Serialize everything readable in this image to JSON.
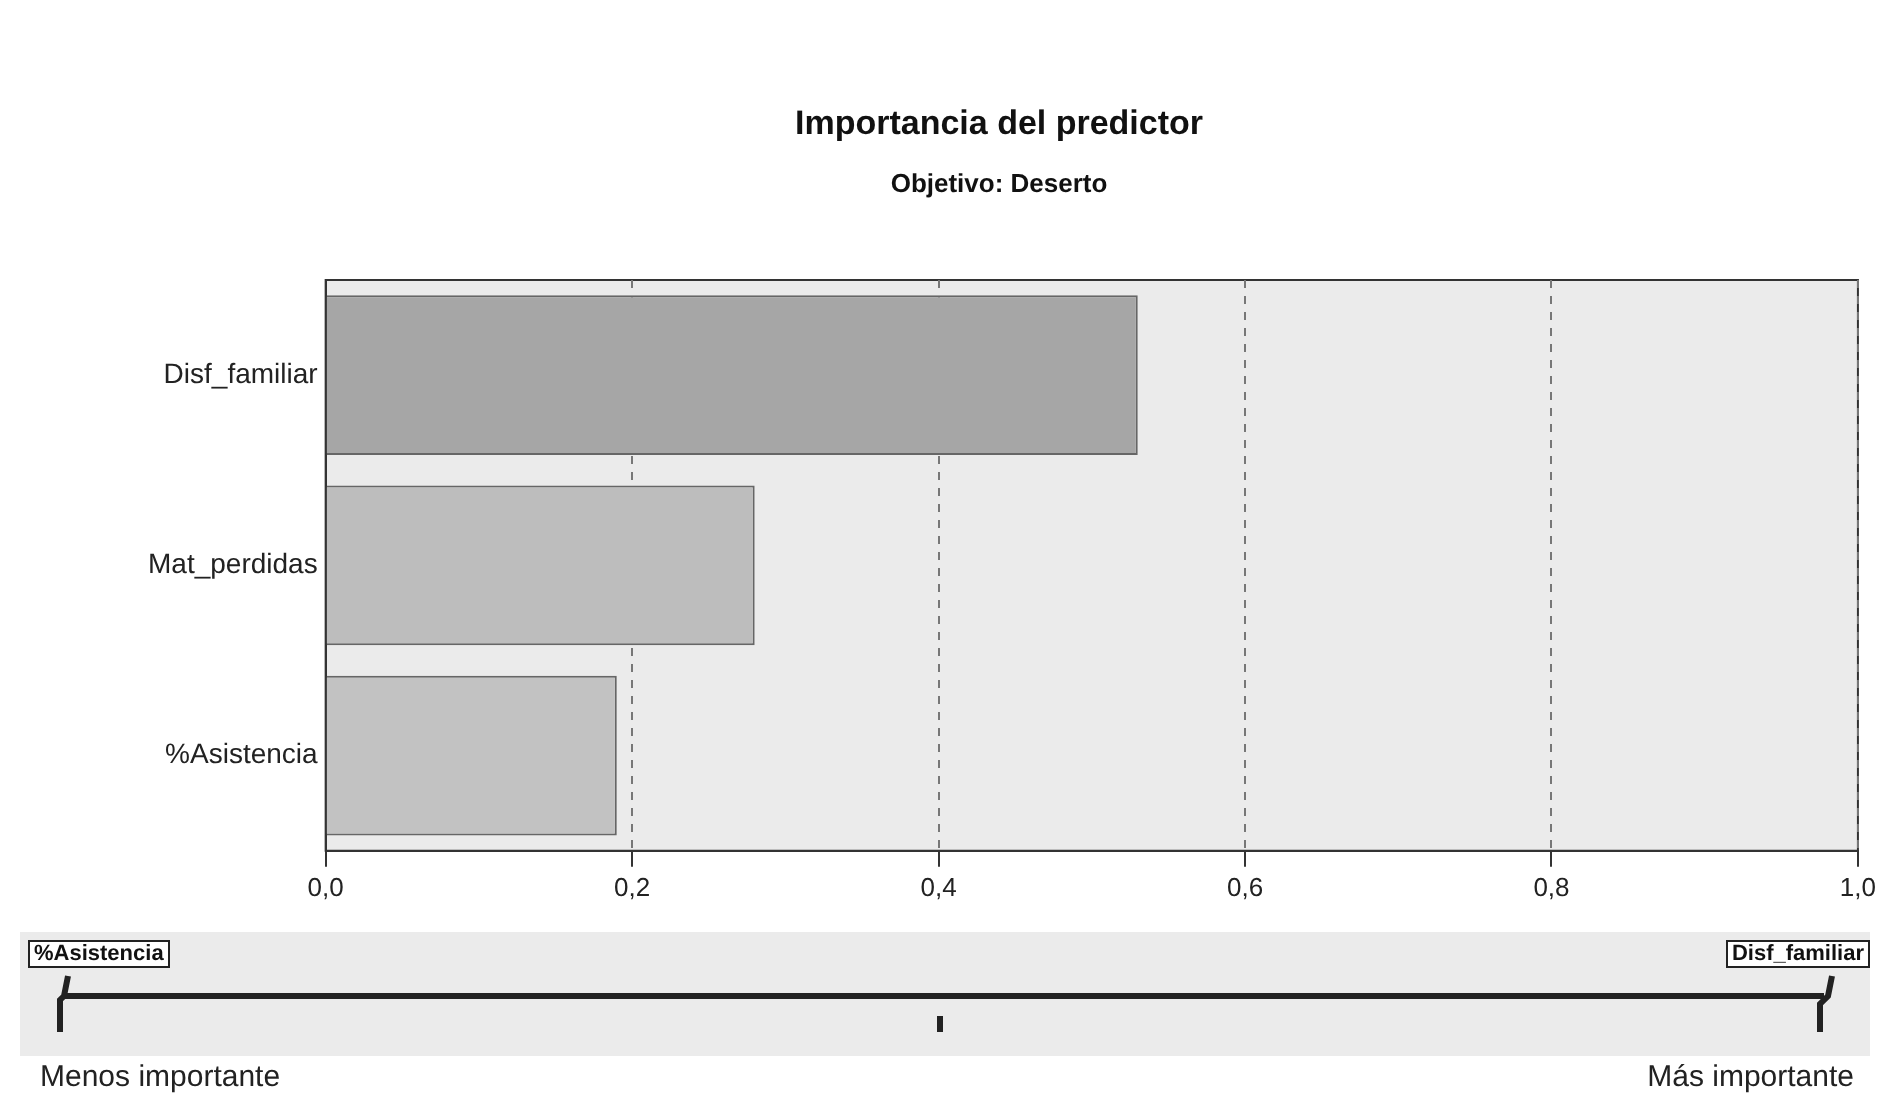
{
  "chart_data": {
    "type": "bar",
    "orientation": "horizontal",
    "title": "Importancia del predictor",
    "subtitle": "Objetivo: Deserto",
    "categories": [
      "Disf_familiar",
      "Mat_perdidas",
      "%Asistencia"
    ],
    "values": [
      0.53,
      0.28,
      0.19
    ],
    "colors": [
      "#a6a6a6",
      "#bdbdbd",
      "#c2c2c2"
    ],
    "xlim": [
      0,
      1
    ],
    "xticks": [
      {
        "value": 0,
        "label": "0,0"
      },
      {
        "value": 0.2,
        "label": "0,2"
      },
      {
        "value": 0.4,
        "label": "0,4"
      },
      {
        "value": 0.6,
        "label": "0,6"
      },
      {
        "value": 0.8,
        "label": "0,8"
      },
      {
        "value": 1,
        "label": "1,0"
      }
    ],
    "grid": "x",
    "legend": false,
    "annotations": [
      "%Asistencia",
      "Disf_familiar",
      "Menos importante",
      "Más importante"
    ]
  }
}
